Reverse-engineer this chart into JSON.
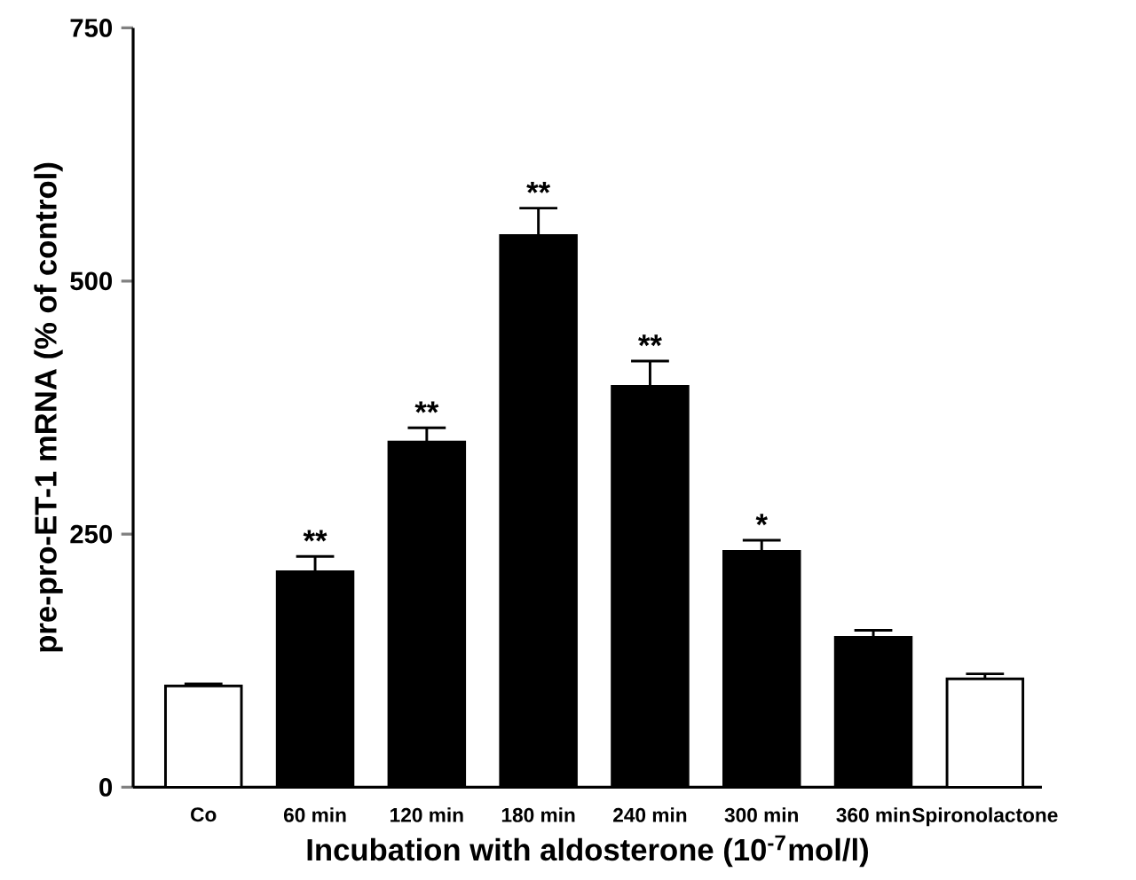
{
  "chart_data": {
    "type": "bar",
    "xlabel": "Incubation with aldosterone   (10$^{-7}$mol/l)",
    "ylabel": "pre-pro-ET-1 mRNA (% of control)",
    "categories": [
      "Co",
      "60 min",
      "120 min",
      "180 min",
      "240 min",
      "300 min",
      "360 min",
      "Spironolactone"
    ],
    "values": [
      100,
      213,
      341,
      545,
      396,
      233,
      148,
      107
    ],
    "colors": [
      "#ffffff",
      "#000000",
      "#000000",
      "#000000",
      "#000000",
      "#000000",
      "#000000",
      "#ffffff"
    ],
    "errors": [
      [
        100,
        102
      ],
      [
        213,
        228
      ],
      [
        341,
        355
      ],
      [
        545,
        572
      ],
      [
        396,
        421
      ],
      [
        233,
        244
      ],
      [
        148,
        155
      ],
      [
        107,
        112
      ]
    ],
    "ylim": [
      0,
      750
    ],
    "yticks": [
      0,
      250,
      500,
      750
    ],
    "grid": false,
    "annotations": [
      {
        "text": "**",
        "x": "60 min",
        "y": 228
      },
      {
        "text": "**",
        "x": "120 min",
        "y": 355
      },
      {
        "text": "**",
        "x": "180 min",
        "y": 572
      },
      {
        "text": "**",
        "x": "240 min",
        "y": 421
      },
      {
        "text": "*",
        "x": "300 min",
        "y": 244
      }
    ]
  }
}
